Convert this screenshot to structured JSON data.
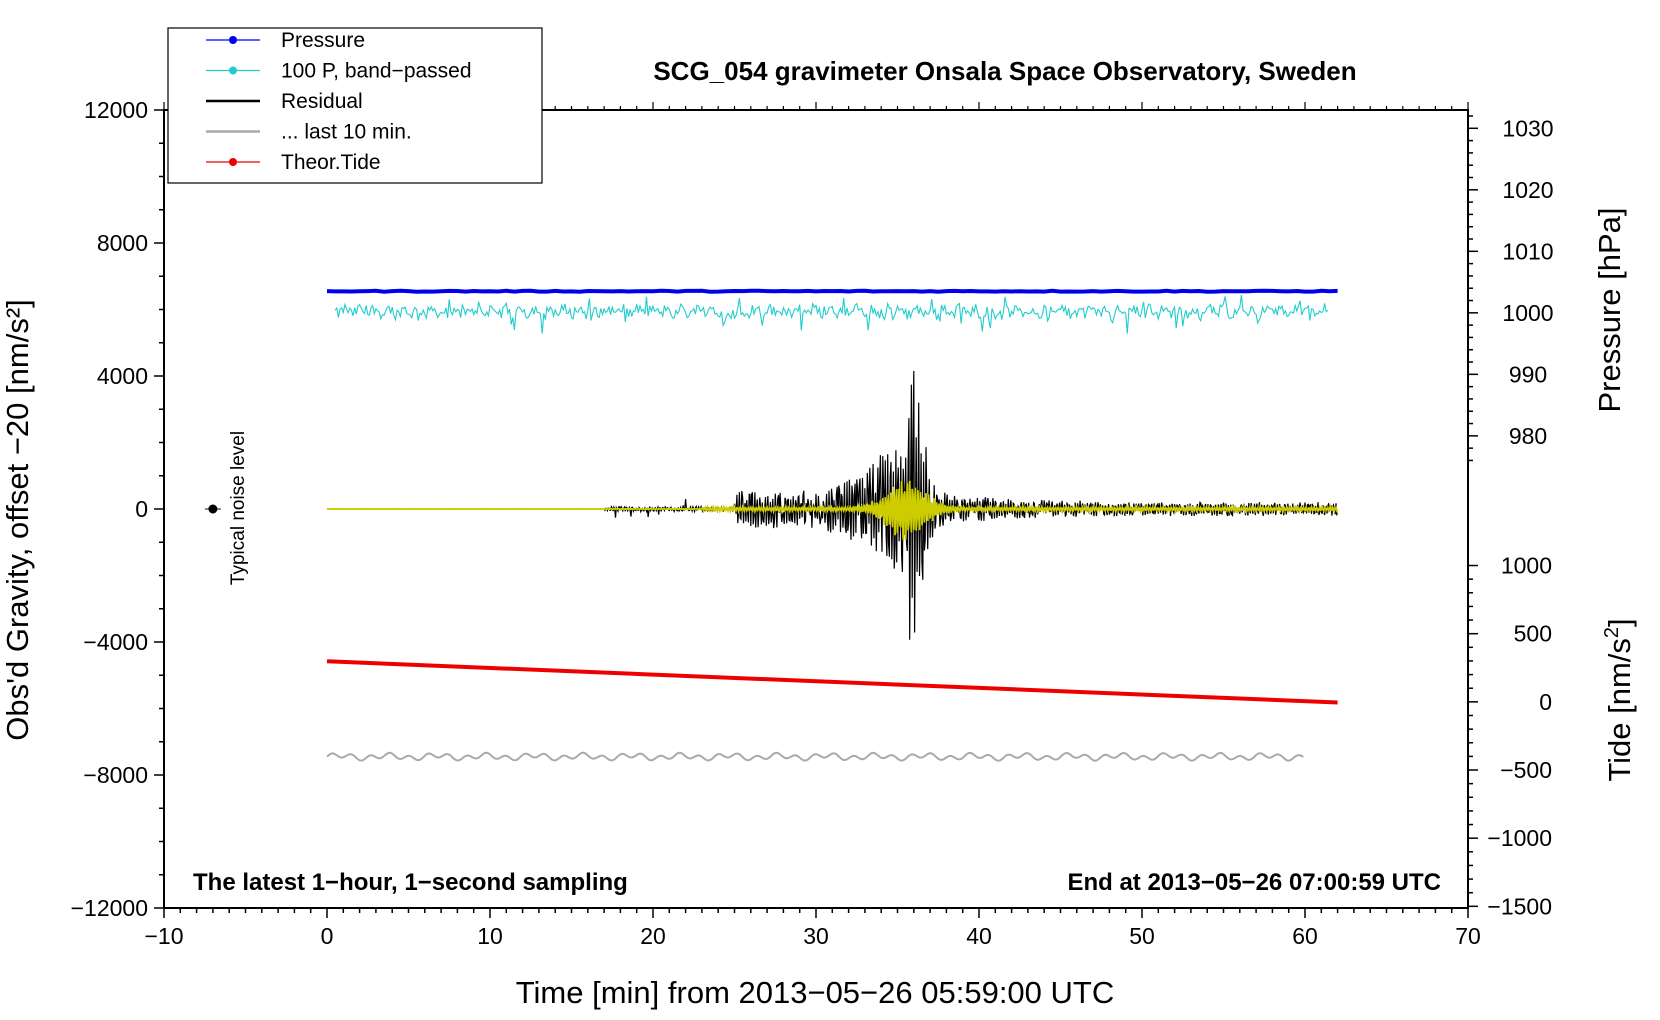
{
  "chart_data": {
    "type": "line",
    "title": "SCG_054 gravimeter Onsala Space Observatory, Sweden",
    "xlabel": "Time [min] from 2013−05−26 05:59:00 UTC",
    "ylabel_left": "Obs'd Gravity, offset −20 [nm/s²]",
    "ylabel_right_pressure": "Pressure [hPa]",
    "ylabel_right_tide_prefix": "Tide [nm/s",
    "ylabel_right_tide_sup": "2",
    "ylabel_right_tide_suffix": "]",
    "xlim": [
      -10,
      70
    ],
    "ylim_left": [
      -12000,
      12000
    ],
    "x_ticks": [
      -10,
      0,
      10,
      20,
      30,
      40,
      50,
      60,
      70
    ],
    "x_tick_labels": [
      "−10",
      "0",
      "10",
      "20",
      "30",
      "40",
      "50",
      "60",
      "70"
    ],
    "y_left_ticks": [
      12000,
      8000,
      4000,
      0,
      -4000,
      -8000,
      -12000
    ],
    "y_left_tick_labels": [
      "12000",
      "8000",
      "4000",
      "0",
      "−4000",
      "−8000",
      "−12000"
    ],
    "pressure_axis": {
      "ticks": [
        1030,
        1020,
        1010,
        1000,
        990,
        980
      ],
      "tick_labels": [
        "1030",
        "1020",
        "1010",
        "1000",
        "990",
        "980"
      ],
      "map_value": 1000,
      "map_gravity": 5900,
      "gravity_per_hpa": 185
    },
    "tide_axis": {
      "ticks": [
        1000,
        500,
        0,
        -500,
        -1000,
        -1500
      ],
      "tick_labels": [
        "1000",
        "500",
        "0",
        "−500",
        "−1000",
        "−1500"
      ],
      "map_value": 0,
      "map_gravity": -5800,
      "gravity_per_unit": 4.1
    },
    "annotations": {
      "bottom_left": "The latest 1−hour, 1−second sampling",
      "bottom_right": "End at 2013−05−26 07:00:59 UTC",
      "noise": "Typical noise level"
    },
    "legend": {
      "position": "top-left",
      "entries": [
        {
          "label": "Pressure",
          "color": "#0000ee",
          "marker": true
        },
        {
          "label": "100 P, band−passed",
          "color": "#22cccc",
          "marker": true
        },
        {
          "label": "Residual",
          "color": "#000000",
          "marker": false
        },
        {
          "label": "... last 10 min.",
          "color": "#aaaaaa",
          "marker": false
        },
        {
          "label": "Theor.Tide",
          "color": "#ee0000",
          "marker": true
        }
      ]
    },
    "series": [
      {
        "name": "Pressure",
        "color": "#0000ee",
        "kind": "flat",
        "x_range": [
          0,
          62
        ],
        "value_gravity": 6550
      },
      {
        "name": "100 P, band-passed",
        "color": "#22cccc",
        "kind": "noise",
        "x_range": [
          0.5,
          61.5
        ],
        "center_gravity": 5950,
        "amplitude": 300
      },
      {
        "name": "Theor.Tide",
        "color": "#ee0000",
        "kind": "linear",
        "x_range": [
          0,
          62
        ],
        "start_gravity": -4580,
        "end_gravity": -5820
      },
      {
        "name": "... last 10 min.",
        "color": "#aaaaaa",
        "kind": "wave",
        "x_range": [
          0,
          60
        ],
        "center_gravity": -7450,
        "amplitude": 120
      },
      {
        "name": "Residual",
        "color": "#000000",
        "kind": "quake",
        "x_range": [
          17,
          62
        ],
        "peak_x": 35.7,
        "max_gravity": 4700,
        "min_gravity": -4900
      },
      {
        "name": "Residual filtered",
        "color": "#cccc00",
        "kind": "quake_small",
        "x_range": [
          0,
          62
        ],
        "peak_x": 35.5,
        "max_gravity": 1000
      }
    ],
    "noise_marker": {
      "x": -7,
      "value": 0
    }
  }
}
